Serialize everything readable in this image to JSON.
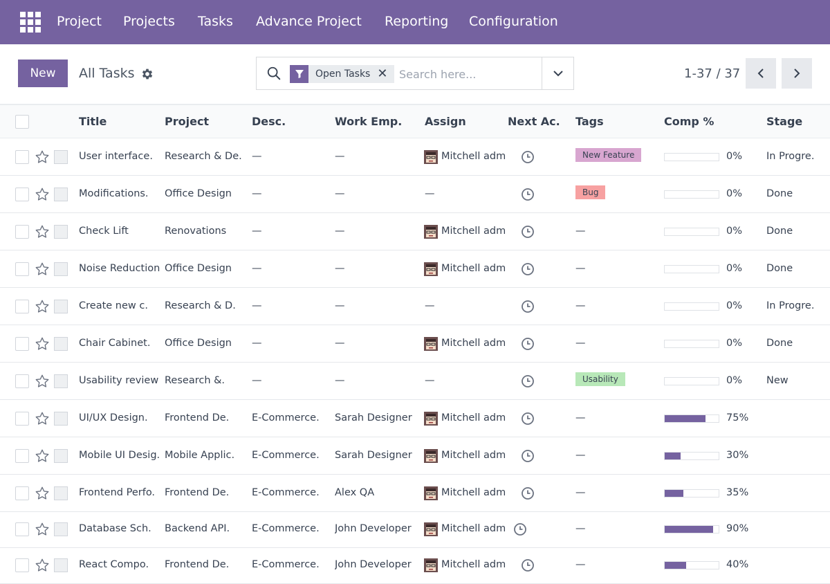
{
  "nav": {
    "items": [
      "Project",
      "Projects",
      "Tasks",
      "Advance Project",
      "Reporting",
      "Configuration"
    ]
  },
  "toolbar": {
    "new_label": "New",
    "breadcrumb": "All Tasks"
  },
  "search": {
    "facet": "Open Tasks",
    "placeholder": "Search here..."
  },
  "pager": {
    "value": "1-37 / 37"
  },
  "table": {
    "columns": [
      "Title",
      "Project",
      "Desc.",
      "Work Emp.",
      "Assign",
      "Next Ac.",
      "Tags",
      "Comp %",
      "Stage"
    ],
    "rows": [
      {
        "title": "User interface.",
        "project": "Research & De.",
        "desc": "—",
        "work_emp": "—",
        "assign": "Mitchell adm.",
        "tag": "New Feature",
        "comp": 0,
        "comp_label": "0%",
        "stage": "In Progre."
      },
      {
        "title": "Modifications.",
        "project": "Office Design",
        "desc": "—",
        "work_emp": "—",
        "assign": "—",
        "tag": "Bug",
        "comp": 0,
        "comp_label": "0%",
        "stage": "Done"
      },
      {
        "title": "Check Lift",
        "project": "Renovations",
        "desc": "—",
        "work_emp": "—",
        "assign": "Mitchell adm.",
        "tag": "—",
        "comp": 0,
        "comp_label": "0%",
        "stage": "Done"
      },
      {
        "title": "Noise Reduction",
        "project": "Office Design",
        "desc": "—",
        "work_emp": "—",
        "assign": "Mitchell adm.",
        "tag": "—",
        "comp": 0,
        "comp_label": "0%",
        "stage": "Done"
      },
      {
        "title": "Create new c.",
        "project": "Research & D.",
        "desc": "—",
        "work_emp": "—",
        "assign": "—",
        "tag": "—",
        "comp": 0,
        "comp_label": "0%",
        "stage": "In Progre."
      },
      {
        "title": "Chair Cabinet.",
        "project": "Office Design",
        "desc": "—",
        "work_emp": "—",
        "assign": "Mitchell adm.",
        "tag": "—",
        "comp": 0,
        "comp_label": "0%",
        "stage": "Done"
      },
      {
        "title": "Usability review",
        "project": "Research &.",
        "desc": "—",
        "work_emp": "—",
        "assign": "—",
        "tag": "Usability",
        "comp": 0,
        "comp_label": "0%",
        "stage": "New"
      },
      {
        "title": "UI/UX Design.",
        "project": "Frontend De.",
        "desc": "E-Commerce.",
        "work_emp": "Sarah Designer",
        "assign": "Mitchell adm.",
        "tag": "—",
        "comp": 75,
        "comp_label": "75%",
        "stage": ""
      },
      {
        "title": "Mobile UI Desig.",
        "project": "Mobile Applic.",
        "desc": "E-Commerce.",
        "work_emp": "Sarah Designer",
        "assign": "Mitchell adm.",
        "tag": "—",
        "comp": 30,
        "comp_label": "30%",
        "stage": ""
      },
      {
        "title": "Frontend Perfo.",
        "project": "Frontend De.",
        "desc": "E-Commerce.",
        "work_emp": "Alex QA",
        "assign": "Mitchell adm.",
        "tag": "—",
        "comp": 35,
        "comp_label": "35%",
        "stage": ""
      },
      {
        "title": "Database Sch.",
        "project": "Backend API.",
        "desc": "E-Commerce.",
        "work_emp": "John Developer",
        "assign": "Mitchell adm.",
        "tag": "—",
        "comp": 90,
        "comp_label": "90%",
        "stage": ""
      },
      {
        "title": "React Compo.",
        "project": "Frontend De.",
        "desc": "E-Commerce.",
        "work_emp": "John Developer",
        "assign": "Mitchell adm.",
        "tag": "—",
        "comp": 40,
        "comp_label": "40%",
        "stage": ""
      }
    ]
  },
  "colors": {
    "brand": "#7562a0",
    "tag_new_feature": "#d8a6d0",
    "tag_bug": "#f7a1a1",
    "tag_usability": "#b8e8b8"
  },
  "icons": [
    "apps-grid-icon",
    "gear-icon",
    "search-icon",
    "filter-icon",
    "close-icon",
    "chevron-down-icon",
    "chevron-left-icon",
    "chevron-right-icon",
    "star-icon",
    "clock-icon",
    "avatar"
  ]
}
